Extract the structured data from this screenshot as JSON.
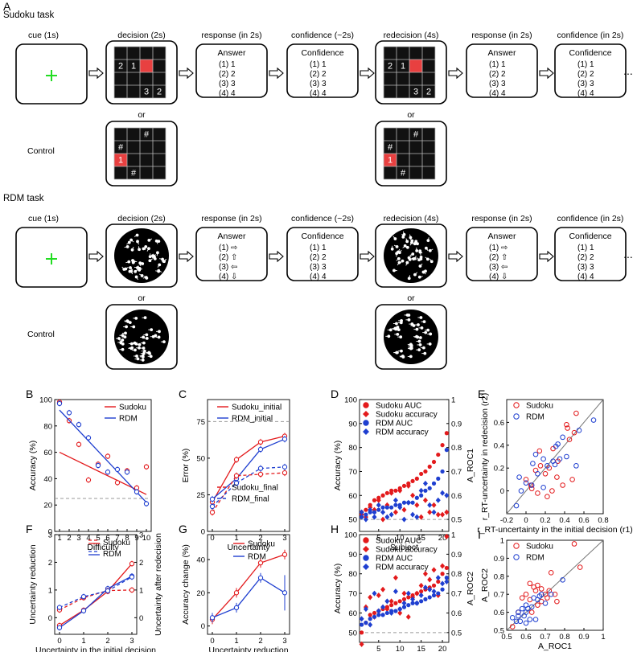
{
  "figure": {
    "panel_letters": [
      "A",
      "B",
      "C",
      "D",
      "E",
      "F",
      "G",
      "H",
      "I"
    ],
    "sudoku_task": {
      "title": "Sudoku task",
      "stages": [
        "cue (1s)",
        "decision (2s)",
        "response (in 2s)",
        "confidence (~2s)",
        "redecision (4s)",
        "response (in 2s)",
        "confidence (in 2s)"
      ],
      "or_label": "or",
      "control_label": "Control",
      "grid_numbers": [
        "2",
        "1",
        "3",
        "2"
      ],
      "control_numbers": [
        "#",
        "#",
        "1",
        "#"
      ],
      "answer_title": "Answer",
      "answer_rows": [
        "(1)  1",
        "(2)  2",
        "(3)  3",
        "(4)  4"
      ],
      "confidence_title": "Confidence",
      "confidence_rows": [
        "(1)  1",
        "(2)  2",
        "(3)  3",
        "(4)  4"
      ],
      "ellipsis": "..."
    },
    "rdm_task": {
      "title": "RDM task",
      "stages": [
        "cue (1s)",
        "decision (2s)",
        "response (in 2s)",
        "confidence (~2s)",
        "redecision (4s)",
        "response (in 2s)",
        "confidence (in 2s)"
      ],
      "or_label": "or",
      "control_label": "Control",
      "answer_title": "Answer",
      "answer_rows": [
        "(1) ⇨",
        "(2) ⇧",
        "(3) ⇦",
        "(4) ⇩"
      ],
      "confidence_title": "Confidence",
      "confidence_rows": [
        "(1)  1",
        "(2)  2",
        "(3)  3",
        "(4)  4"
      ],
      "ellipsis": "..."
    }
  },
  "colors": {
    "sudoku": "#e31a1c",
    "rdm": "#1f3fd0",
    "cue_cross": "#22dd22",
    "highlight": "#e84040",
    "dashed": "#999999"
  },
  "chart_data": [
    {
      "id": "B",
      "type": "line",
      "xlabel": "Difficulty",
      "ylabel": "Accuracy (%)",
      "xlim": [
        0.5,
        10.5
      ],
      "ylim": [
        0,
        100
      ],
      "xticks": [
        1,
        2,
        3,
        4,
        5,
        6,
        7,
        8,
        9,
        10
      ],
      "yticks": [
        0,
        20,
        40,
        60,
        80,
        100
      ],
      "chance_line": 25,
      "legend": [
        "Sudoku",
        "RDM"
      ],
      "series": [
        {
          "name": "Sudoku",
          "x": [
            1,
            2,
            3,
            4,
            5,
            6,
            7,
            8,
            9,
            10
          ],
          "values": [
            98,
            84,
            66,
            39,
            51,
            57,
            37,
            46,
            33,
            49
          ],
          "fit": [
            [
              1,
              60
            ],
            [
              10,
              28
            ]
          ]
        },
        {
          "name": "RDM",
          "x": [
            1,
            2,
            3,
            4,
            5,
            6,
            7,
            8,
            9,
            10
          ],
          "values": [
            97,
            90,
            81,
            71,
            50,
            45,
            47,
            45,
            30,
            21
          ],
          "fit": [
            [
              1,
              92
            ],
            [
              10,
              22
            ]
          ]
        }
      ]
    },
    {
      "id": "C",
      "type": "line",
      "xlabel": "Uncertainty",
      "ylabel": "Error (%)",
      "xlim": [
        -0.2,
        3.2
      ],
      "ylim": [
        0,
        90
      ],
      "xticks": [
        0,
        1,
        2,
        3
      ],
      "yticks": [
        0,
        25,
        50,
        75
      ],
      "ref_line": 75,
      "legend": [
        "Sudoku_initial",
        "RDM_initial",
        "Sudoku_final",
        "RDM_final"
      ],
      "series": [
        {
          "name": "Sudoku_initial",
          "x": [
            0,
            1,
            2,
            3
          ],
          "values": [
            20,
            49,
            61,
            65
          ]
        },
        {
          "name": "RDM_initial",
          "x": [
            0,
            1,
            2,
            3
          ],
          "values": [
            22,
            36,
            56,
            63
          ]
        },
        {
          "name": "Sudoku_final",
          "x": [
            0,
            1,
            2,
            3
          ],
          "values": [
            13,
            38,
            39,
            40
          ]
        },
        {
          "name": "RDM_final",
          "x": [
            0,
            1,
            2,
            3
          ],
          "values": [
            17,
            33,
            43,
            44
          ]
        }
      ]
    },
    {
      "id": "D",
      "type": "scatter",
      "xlabel": "Subject",
      "ylabel": "Accuracy (%)",
      "y2label": "A_ROC1",
      "xlim": [
        0.5,
        21.5
      ],
      "ylim": [
        45,
        100
      ],
      "y2lim": [
        0.45,
        1.0
      ],
      "xticks": [
        5,
        10,
        15,
        20
      ],
      "yticks": [
        50,
        60,
        70,
        80,
        90,
        100
      ],
      "y2ticks": [
        0.5,
        0.6,
        0.7,
        0.8,
        0.9,
        1.0
      ],
      "legend": [
        "Sudoku AUC",
        "Sudoku accuracy",
        "RDM AUC",
        "RDM accuracy"
      ],
      "series": [
        {
          "name": "Sudoku AUC",
          "axis": "y2",
          "values": [
            0.53,
            0.54,
            0.56,
            0.58,
            0.59,
            0.6,
            0.61,
            0.62,
            0.62,
            0.63,
            0.64,
            0.65,
            0.66,
            0.67,
            0.69,
            0.7,
            0.72,
            0.74,
            0.77,
            0.81,
            0.86
          ]
        },
        {
          "name": "Sudoku accuracy",
          "axis": "y",
          "values": [
            52,
            51,
            55,
            54,
            58,
            50,
            56,
            61,
            53,
            62,
            54,
            64,
            60,
            56,
            51,
            58,
            53,
            56,
            52,
            52,
            53
          ]
        },
        {
          "name": "RDM AUC",
          "axis": "y2",
          "values": [
            0.51,
            0.52,
            0.53,
            0.53,
            0.54,
            0.55,
            0.55,
            0.55,
            0.56,
            0.56,
            0.57,
            0.57,
            0.57,
            0.59,
            0.6,
            0.62,
            0.63,
            0.65,
            0.67,
            0.7,
            0.79
          ]
        },
        {
          "name": "RDM accuracy",
          "axis": "y",
          "values": [
            53,
            50,
            54,
            51,
            56,
            53,
            51,
            52,
            58,
            55,
            50,
            57,
            52,
            51,
            62,
            65,
            56,
            53,
            58,
            61,
            60
          ]
        }
      ]
    },
    {
      "id": "E",
      "type": "scatter",
      "xlabel": "r_RT-uncertainty in the initial decision (r1)",
      "ylabel": "r_RT-uncertainty in redecision (r2)",
      "xlim": [
        -0.2,
        0.8
      ],
      "ylim": [
        -0.2,
        0.8
      ],
      "xticks": [
        -0.2,
        0,
        0.2,
        0.4,
        0.6,
        0.8
      ],
      "yticks": [
        0,
        0.2,
        0.4,
        0.6
      ],
      "legend": [
        "Sudoku",
        "RDM"
      ],
      "series": [
        {
          "name": "Sudoku",
          "points": [
            [
              0.52,
              0.68
            ],
            [
              0.43,
              0.55
            ],
            [
              0.5,
              0.51
            ],
            [
              0.45,
              0.45
            ],
            [
              0.28,
              0.37
            ],
            [
              0.33,
              0.26
            ],
            [
              0.24,
              0.2
            ],
            [
              0.15,
              0.22
            ],
            [
              0.1,
              0.18
            ],
            [
              0.2,
              0.15
            ],
            [
              0.05,
              0.05
            ],
            [
              0.32,
              0.12
            ],
            [
              0.48,
              0.1
            ],
            [
              0.38,
              0.05
            ],
            [
              0.27,
              0.0
            ],
            [
              0.12,
              -0.02
            ],
            [
              0.22,
              -0.05
            ],
            [
              0.06,
              0.02
            ],
            [
              0.0,
              0.1
            ],
            [
              0.14,
              0.35
            ],
            [
              0.42,
              0.58
            ]
          ]
        },
        {
          "name": "RDM",
          "points": [
            [
              0.7,
              0.62
            ],
            [
              0.55,
              0.53
            ],
            [
              0.38,
              0.47
            ],
            [
              0.33,
              0.41
            ],
            [
              0.31,
              0.39
            ],
            [
              0.42,
              0.3
            ],
            [
              0.35,
              0.28
            ],
            [
              0.28,
              0.26
            ],
            [
              0.3,
              0.23
            ],
            [
              0.22,
              0.22
            ],
            [
              0.18,
              0.28
            ],
            [
              0.1,
              0.32
            ],
            [
              0.07,
              0.24
            ],
            [
              0.12,
              0.15
            ],
            [
              -0.07,
              0.12
            ],
            [
              0.0,
              0.07
            ],
            [
              0.06,
              0.05
            ],
            [
              -0.05,
              0.0
            ],
            [
              -0.1,
              -0.13
            ],
            [
              0.18,
              0.03
            ],
            [
              0.52,
              0.22
            ]
          ]
        }
      ]
    },
    {
      "id": "F",
      "type": "line",
      "xlabel": "Uncertainty in the initial decision",
      "ylabel": "Uncertainty reduction",
      "y2label": "Uncertainty after redecision",
      "xlim": [
        -0.2,
        3.2
      ],
      "ylim": [
        -0.6,
        3
      ],
      "y2lim": [
        -0.6,
        3
      ],
      "xticks": [
        0,
        1,
        2,
        3
      ],
      "yticks": [
        0,
        1,
        2,
        3
      ],
      "y2ticks": [
        0,
        1,
        2,
        3
      ],
      "legend": [
        "Sudoku",
        "RDM"
      ],
      "series": [
        {
          "name": "Sudoku reduction",
          "x": [
            0,
            1,
            2,
            3
          ],
          "values": [
            -0.28,
            0.27,
            0.95,
            1.95
          ]
        },
        {
          "name": "RDM reduction",
          "x": [
            0,
            1,
            2,
            3
          ],
          "values": [
            -0.36,
            0.25,
            1.05,
            1.5
          ]
        },
        {
          "name": "Sudoku after",
          "x": [
            0,
            1,
            2,
            3
          ],
          "values": [
            0.28,
            0.72,
            0.98,
            1.0
          ]
        },
        {
          "name": "RDM after",
          "x": [
            0,
            1,
            2,
            3
          ],
          "values": [
            0.37,
            0.76,
            0.97,
            1.47
          ]
        }
      ]
    },
    {
      "id": "G",
      "type": "line",
      "xlabel": "Uncertainty reduction",
      "ylabel": "Accuracy change (%)",
      "xlim": [
        -0.2,
        3.2
      ],
      "ylim": [
        -5,
        55
      ],
      "xticks": [
        0,
        1,
        2,
        3
      ],
      "yticks": [
        0,
        20,
        40
      ],
      "legend": [
        "Sudoku",
        "RDM"
      ],
      "series": [
        {
          "name": "Sudoku",
          "x": [
            0,
            1,
            2,
            3
          ],
          "values": [
            4,
            20,
            38,
            43
          ]
        },
        {
          "name": "RDM",
          "x": [
            0,
            1,
            2,
            3
          ],
          "values": [
            5,
            11,
            29,
            20
          ]
        }
      ]
    },
    {
      "id": "H",
      "type": "scatter",
      "xlabel": "Subject",
      "ylabel": "Accuracy (%)",
      "y2label": "A_ROC2",
      "xlim": [
        0.5,
        21.5
      ],
      "ylim": [
        45,
        100
      ],
      "y2lim": [
        0.45,
        1.0
      ],
      "xticks": [
        5,
        10,
        15,
        20
      ],
      "yticks": [
        50,
        60,
        70,
        80,
        90,
        100
      ],
      "y2ticks": [
        0.5,
        0.6,
        0.7,
        0.8,
        0.9,
        1.0
      ],
      "legend": [
        "Sudoku AUC",
        "Sudoku accuracy",
        "RDM AUC",
        "RDM accuracy"
      ],
      "series": [
        {
          "name": "Sudoku AUC",
          "axis": "y2",
          "values": [
            0.5,
            0.55,
            0.59,
            0.6,
            0.61,
            0.62,
            0.63,
            0.64,
            0.65,
            0.66,
            0.67,
            0.68,
            0.69,
            0.7,
            0.71,
            0.72,
            0.73,
            0.74,
            0.76,
            0.8,
            0.83
          ]
        },
        {
          "name": "Sudoku accuracy",
          "axis": "y",
          "values": [
            44,
            63,
            68,
            58,
            69,
            72,
            62,
            66,
            78,
            60,
            70,
            58,
            68,
            70,
            74,
            80,
            77,
            82,
            69,
            84,
            99
          ]
        },
        {
          "name": "RDM AUC",
          "axis": "y2",
          "values": [
            0.54,
            0.55,
            0.57,
            0.58,
            0.59,
            0.59,
            0.6,
            0.61,
            0.61,
            0.62,
            0.63,
            0.64,
            0.65,
            0.65,
            0.66,
            0.67,
            0.68,
            0.69,
            0.7,
            0.72,
            0.78
          ]
        },
        {
          "name": "RDM accuracy",
          "axis": "y",
          "values": [
            57,
            62,
            54,
            70,
            61,
            63,
            66,
            60,
            71,
            62,
            65,
            70,
            67,
            65,
            69,
            73,
            72,
            71,
            78,
            75,
            76
          ]
        }
      ]
    },
    {
      "id": "I",
      "type": "scatter",
      "xlabel": "A_ROC1",
      "ylabel": "A_ROC2",
      "xlim": [
        0.5,
        1.0
      ],
      "ylim": [
        0.5,
        1.0
      ],
      "xticks": [
        0.5,
        0.6,
        0.7,
        0.8,
        0.9,
        1.0
      ],
      "yticks": [
        0.5,
        0.6,
        0.7,
        0.8,
        0.9,
        1.0
      ],
      "legend": [
        "Sudoku",
        "RDM"
      ],
      "series": [
        {
          "name": "Sudoku",
          "points": [
            [
              0.85,
              0.98
            ],
            [
              0.88,
              0.85
            ],
            [
              0.73,
              0.82
            ],
            [
              0.62,
              0.76
            ],
            [
              0.64,
              0.74
            ],
            [
              0.66,
              0.75
            ],
            [
              0.68,
              0.73
            ],
            [
              0.6,
              0.7
            ],
            [
              0.7,
              0.7
            ],
            [
              0.65,
              0.72
            ],
            [
              0.72,
              0.72
            ],
            [
              0.75,
              0.7
            ],
            [
              0.58,
              0.68
            ],
            [
              0.62,
              0.67
            ],
            [
              0.68,
              0.66
            ],
            [
              0.56,
              0.6
            ],
            [
              0.63,
              0.6
            ],
            [
              0.76,
              0.66
            ],
            [
              0.66,
              0.64
            ],
            [
              0.71,
              0.68
            ],
            [
              0.53,
              0.52
            ]
          ]
        },
        {
          "name": "RDM",
          "points": [
            [
              0.79,
              0.78
            ],
            [
              0.73,
              0.7
            ],
            [
              0.68,
              0.7
            ],
            [
              0.67,
              0.69
            ],
            [
              0.66,
              0.67
            ],
            [
              0.64,
              0.68
            ],
            [
              0.6,
              0.64
            ],
            [
              0.58,
              0.62
            ],
            [
              0.6,
              0.6
            ],
            [
              0.56,
              0.6
            ],
            [
              0.56,
              0.58
            ],
            [
              0.57,
              0.55
            ],
            [
              0.62,
              0.56
            ],
            [
              0.65,
              0.56
            ],
            [
              0.59,
              0.58
            ],
            [
              0.53,
              0.57
            ],
            [
              0.61,
              0.62
            ],
            [
              0.7,
              0.65
            ],
            [
              0.63,
              0.63
            ],
            [
              0.6,
              0.54
            ],
            [
              0.55,
              0.55
            ]
          ]
        }
      ]
    }
  ]
}
